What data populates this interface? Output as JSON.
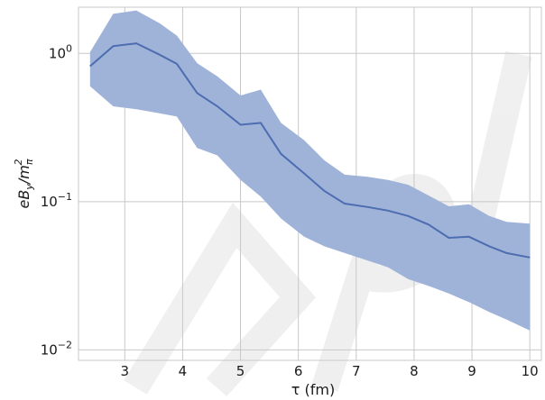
{
  "chart_data": {
    "type": "area",
    "xlabel": "τ (fm)",
    "ylabel": "eBy/mπ²",
    "ylabel_parts": {
      "base": "eB",
      "base_sub": "y",
      "slash": "/m",
      "m_sub": "π",
      "m_sup": "2"
    },
    "yscale": "log",
    "xlim": [
      2.2,
      10.2
    ],
    "ylim": [
      0.0085,
      2.05
    ],
    "grid": true,
    "x_ticks": [
      {
        "value": 3,
        "label": "3"
      },
      {
        "value": 4,
        "label": "4"
      },
      {
        "value": 5,
        "label": "5"
      },
      {
        "value": 6,
        "label": "6"
      },
      {
        "value": 7,
        "label": "7"
      },
      {
        "value": 8,
        "label": "8"
      },
      {
        "value": 9,
        "label": "9"
      },
      {
        "value": 10,
        "label": "10"
      }
    ],
    "y_ticks": [
      {
        "value": 1,
        "label_base": "10",
        "label_exp": "0"
      },
      {
        "value": 0.1,
        "label_base": "10",
        "label_exp": "−1"
      },
      {
        "value": 0.01,
        "label_base": "10",
        "label_exp": "−2"
      }
    ],
    "colors": {
      "line": "#4c6db0",
      "band": "#9fb3d9",
      "grid": "#c8c8c8"
    },
    "series": [
      {
        "x": [
          2.4,
          2.8,
          3.2,
          3.6,
          3.9,
          4.25,
          4.6,
          5.0,
          5.35,
          5.7,
          6.1,
          6.45,
          6.8,
          7.2,
          7.55,
          7.9,
          8.25,
          8.6,
          8.95,
          9.3,
          9.6,
          10.0
        ],
        "y": [
          0.82,
          1.12,
          1.17,
          0.98,
          0.85,
          0.54,
          0.44,
          0.33,
          0.34,
          0.21,
          0.155,
          0.118,
          0.097,
          0.092,
          0.087,
          0.08,
          0.07,
          0.057,
          0.058,
          0.05,
          0.045,
          0.042
        ],
        "lower": [
          0.6,
          0.44,
          0.42,
          0.395,
          0.375,
          0.23,
          0.205,
          0.14,
          0.108,
          0.077,
          0.058,
          0.05,
          0.045,
          0.04,
          0.036,
          0.03,
          0.027,
          0.024,
          0.021,
          0.018,
          0.016,
          0.0135
        ],
        "upper": [
          1.02,
          1.85,
          1.95,
          1.6,
          1.32,
          0.86,
          0.7,
          0.52,
          0.57,
          0.34,
          0.26,
          0.19,
          0.152,
          0.147,
          0.14,
          0.13,
          0.11,
          0.093,
          0.096,
          0.08,
          0.073,
          0.071
        ]
      }
    ]
  }
}
